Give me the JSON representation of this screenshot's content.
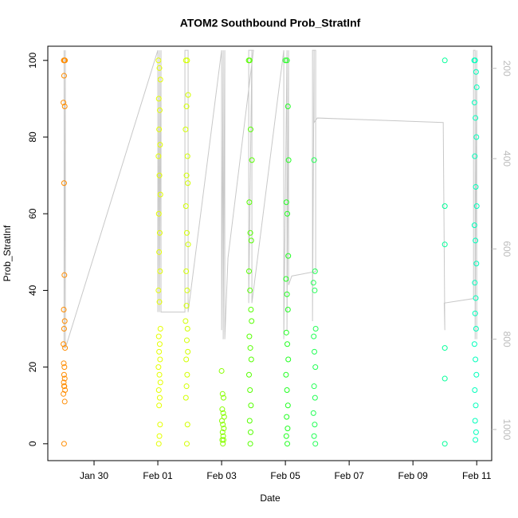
{
  "chart_data": {
    "type": "scatter",
    "title": "ATOM2 Southbound Prob_StratInf",
    "x_label": "Date",
    "y_label": "Prob_StratInf",
    "xlim": [
      28.55,
      42.47
    ],
    "ylim": [
      -4.4,
      103.7
    ],
    "y2lim": [
      1069,
      151
    ],
    "xticks": [
      {
        "value": 30,
        "label": "Jan 30"
      },
      {
        "value": 32,
        "label": "Feb 01"
      },
      {
        "value": 34,
        "label": "Feb 03"
      },
      {
        "value": 36,
        "label": "Feb 05"
      },
      {
        "value": 38,
        "label": "Feb 07"
      },
      {
        "value": 40,
        "label": "Feb 09"
      },
      {
        "value": 42,
        "label": "Feb 11"
      }
    ],
    "yticks": [
      0,
      20,
      40,
      60,
      80,
      100
    ],
    "y2ticks": [
      200,
      400,
      600,
      800,
      1000
    ],
    "series": [
      {
        "type": "line",
        "axis": "y2",
        "color": "#c8c8c8",
        "x": [
          29.06,
          29.06,
          29.1,
          29.1,
          32.0,
          32.0,
          32.05,
          32.05,
          32.1,
          32.1,
          32.2,
          32.85,
          32.85,
          32.95,
          32.95,
          34.0,
          34.0,
          34.05,
          34.05,
          34.1,
          34.1,
          34.2,
          35.0,
          34.85,
          34.85,
          34.95,
          34.95,
          35.95,
          35.95,
          36.05,
          36.05,
          36.1,
          36.1,
          36.2,
          36.95,
          36.95,
          36.85,
          36.85,
          36.9,
          36.9,
          37.0,
          40.95,
          41.0,
          40.98,
          41.9,
          41.9,
          41.95,
          41.95,
          42.0,
          42.0
        ],
        "values": [
          160,
          820,
          160,
          820,
          160,
          740,
          160,
          740,
          160,
          740,
          740,
          740,
          160,
          160,
          740,
          160,
          780,
          160,
          800,
          160,
          800,
          620,
          160,
          160,
          720,
          160,
          720,
          160,
          800,
          160,
          780,
          160,
          680,
          660,
          650,
          160,
          160,
          760,
          160,
          320,
          310,
          320,
          780,
          720,
          710,
          160,
          160,
          800,
          160,
          800
        ]
      },
      {
        "color": "#ff8c00",
        "x": [
          29.05,
          29.07,
          29.09,
          29.06,
          29.04,
          29.08,
          29.06,
          29.07,
          29.05,
          29.08,
          29.06,
          29.04,
          29.09,
          29.05,
          29.07,
          29.06,
          29.08,
          29.05,
          29.07,
          29.06,
          29.09,
          29.04,
          29.08,
          29.06
        ],
        "values": [
          100,
          100,
          100,
          96,
          89,
          88,
          68,
          44,
          35,
          32,
          30,
          26,
          25,
          21,
          20,
          18,
          17,
          16,
          15,
          15,
          14,
          13,
          11,
          0
        ]
      },
      {
        "color": "#e5ff00",
        "x": [
          32.02,
          32.05,
          32.08,
          32.03,
          32.06,
          32.04,
          32.07,
          32.02,
          32.05,
          32.08,
          32.03,
          32.06,
          32.04,
          32.07,
          32.02,
          32.05,
          32.08,
          32.03,
          32.06,
          32.04,
          32.07,
          32.02,
          32.05,
          32.08,
          32.03,
          32.06,
          32.04,
          32.07,
          32.05,
          32.03
        ],
        "values": [
          100,
          98,
          95,
          90,
          87,
          82,
          78,
          75,
          70,
          65,
          60,
          55,
          50,
          45,
          40,
          37,
          30,
          28,
          26,
          24,
          22,
          20,
          18,
          16,
          14,
          12,
          10,
          5,
          2,
          0
        ]
      },
      {
        "color": "#d2ff00",
        "x": [
          32.88,
          32.92,
          32.95,
          32.9,
          32.87,
          32.93,
          32.9,
          32.94,
          32.88,
          32.91,
          32.95,
          32.89,
          32.92,
          32.9,
          32.87,
          32.93,
          32.91,
          32.94,
          32.89,
          32.92,
          32.9,
          32.88,
          32.93,
          32.91
        ],
        "values": [
          100,
          100,
          91,
          88,
          82,
          75,
          70,
          68,
          62,
          55,
          52,
          45,
          40,
          36,
          32,
          30,
          27,
          24,
          22,
          18,
          15,
          12,
          5,
          0
        ]
      },
      {
        "color": "#88ff00",
        "x": [
          34.0,
          34.03,
          34.06,
          34.02,
          34.05,
          34.08,
          34.01,
          34.04,
          34.07,
          34.03,
          34.05,
          34.02,
          34.06,
          34.04
        ],
        "values": [
          19,
          13,
          12,
          9,
          8,
          7,
          6,
          5,
          4,
          3,
          2,
          1,
          1,
          0
        ]
      },
      {
        "color": "#55ff00",
        "x": [
          34.85,
          34.88,
          34.91,
          34.95,
          34.87,
          34.9,
          34.93,
          34.86,
          34.89,
          34.92,
          34.94,
          34.87,
          34.9,
          34.93,
          34.86,
          34.89,
          34.92,
          34.88,
          34.91,
          34.9
        ],
        "values": [
          100,
          100,
          82,
          74,
          63,
          55,
          53,
          45,
          40,
          35,
          32,
          28,
          25,
          22,
          18,
          14,
          10,
          6,
          3,
          0
        ]
      },
      {
        "color": "#22ff22",
        "x": [
          36.0,
          36.05,
          36.08,
          36.1,
          36.03,
          36.06,
          36.09,
          36.02,
          36.05,
          36.08,
          36.03,
          36.06,
          36.09,
          36.02,
          36.05,
          36.08,
          36.04,
          36.07,
          36.03,
          36.06
        ],
        "values": [
          100,
          100,
          88,
          74,
          63,
          60,
          49,
          43,
          39,
          35,
          29,
          26,
          22,
          18,
          14,
          10,
          7,
          4,
          2,
          0
        ]
      },
      {
        "color": "#22ff55",
        "x": [
          36.9,
          36.93,
          36.88,
          36.92,
          36.95,
          36.89,
          36.91,
          36.94,
          36.9,
          36.93,
          36.88,
          36.92,
          36.9,
          36.94
        ],
        "values": [
          74,
          45,
          42,
          40,
          30,
          28,
          24,
          20,
          15,
          12,
          8,
          5,
          2,
          0
        ]
      },
      {
        "color": "#00ff99",
        "x": [
          41.0,
          41.0,
          41.0,
          41.0,
          41.0,
          41.0
        ],
        "values": [
          100,
          62,
          52,
          25,
          17,
          0
        ]
      },
      {
        "color": "#00ffbb",
        "x": [
          41.92,
          41.95,
          41.98,
          42.0,
          41.93,
          41.96,
          41.99,
          41.94,
          41.97,
          42.0,
          41.93,
          41.96,
          41.99,
          41.94,
          41.97,
          41.95,
          41.98,
          41.93,
          41.96,
          41.99,
          41.94,
          41.97,
          41.95,
          41.98,
          41.96
        ],
        "values": [
          100,
          100,
          97,
          93,
          89,
          85,
          80,
          75,
          67,
          62,
          57,
          53,
          47,
          42,
          38,
          34,
          30,
          26,
          22,
          18,
          14,
          10,
          6,
          3,
          1
        ]
      }
    ]
  }
}
